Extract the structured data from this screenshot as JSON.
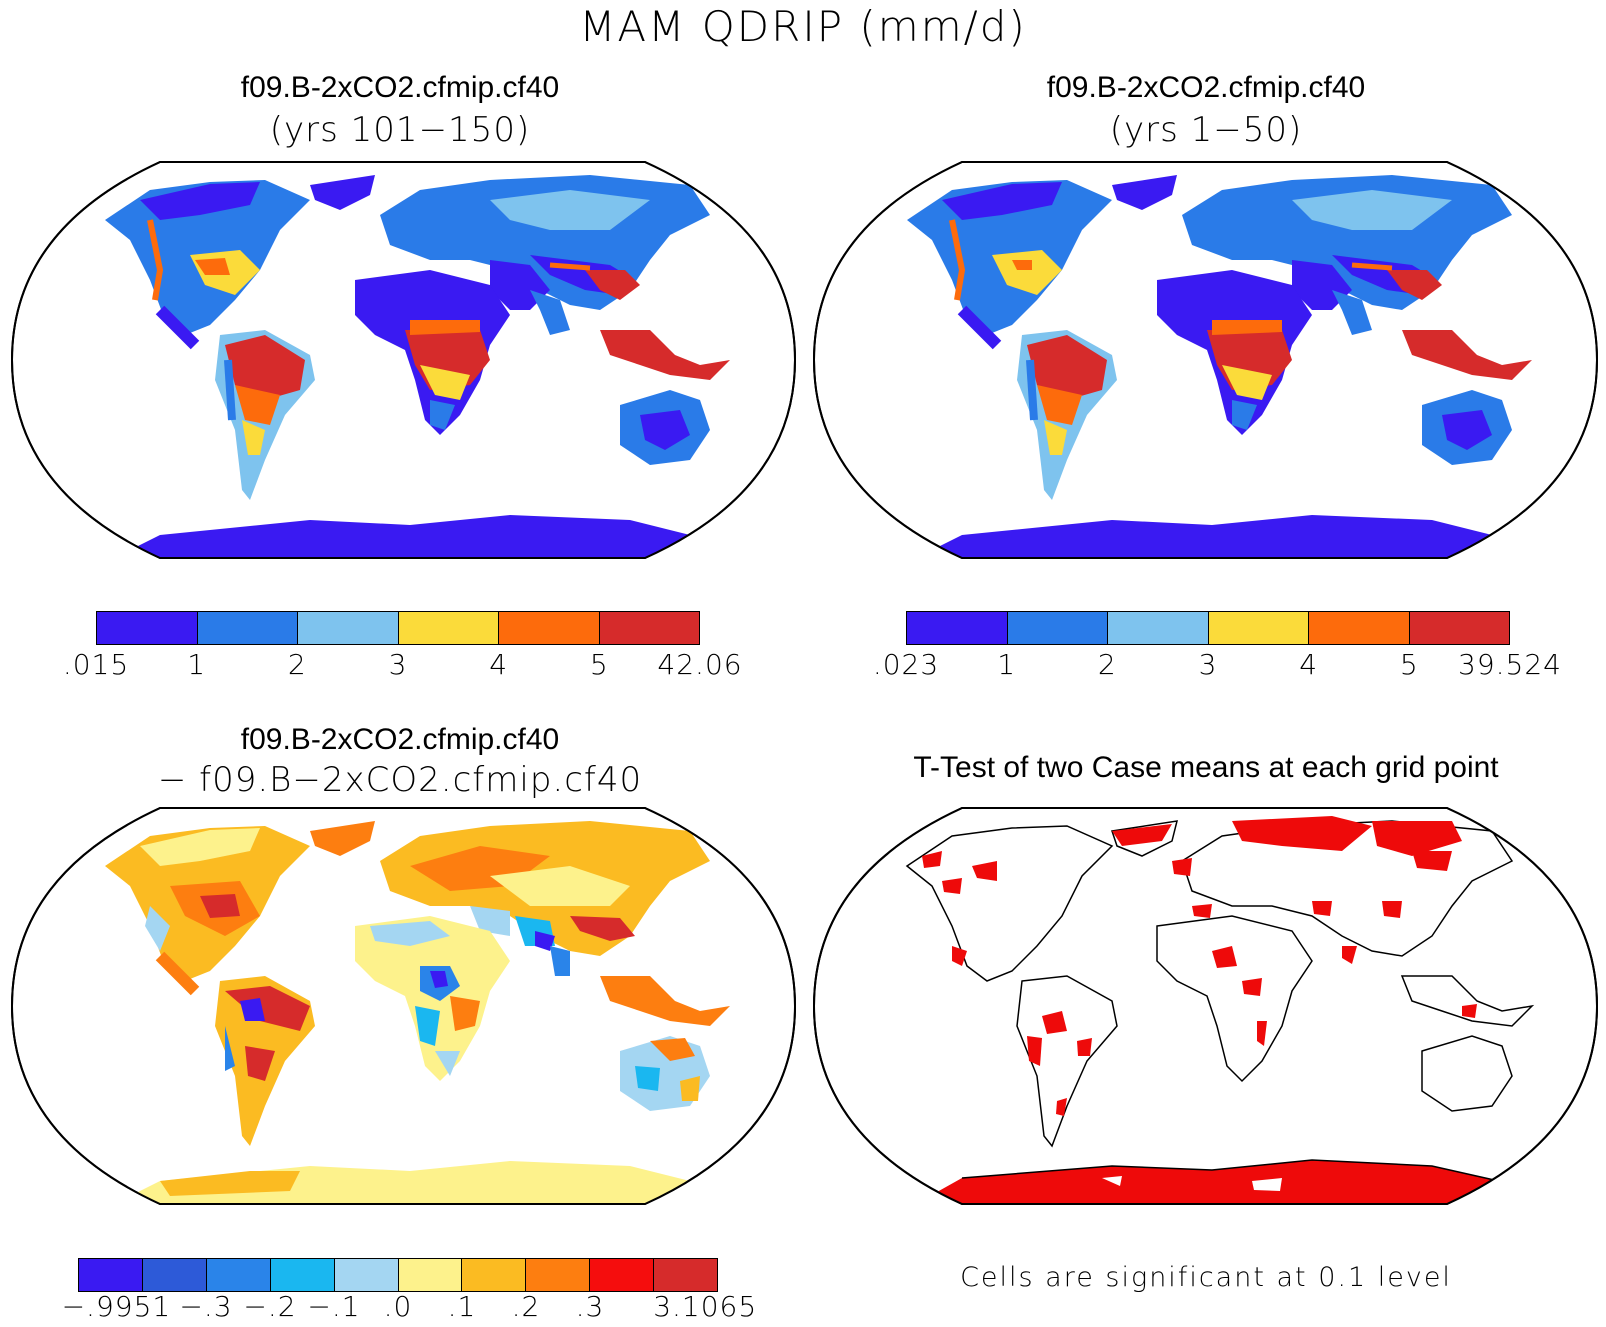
{
  "title": "MAM QDRIP (mm/d)",
  "panels": {
    "top_left": {
      "title": "f09.B-2xCO2.cfmip.cf40",
      "subtitle": "(yrs 101−150)",
      "colorbar_colors": [
        "#3a1af2",
        "#2a7be8",
        "#7ec3ee",
        "#fbdb3a",
        "#fd6b0c",
        "#d62b2b"
      ],
      "colorbar_labels": [
        ".015",
        "1",
        "2",
        "3",
        "4",
        "5",
        "42.06"
      ]
    },
    "top_right": {
      "title": "f09.B-2xCO2.cfmip.cf40",
      "subtitle": "(yrs 1−50)",
      "colorbar_colors": [
        "#3a1af2",
        "#2a7be8",
        "#7ec3ee",
        "#fbdb3a",
        "#fd6b0c",
        "#d62b2b"
      ],
      "colorbar_labels": [
        ".023",
        "1",
        "2",
        "3",
        "4",
        "5",
        "39.524"
      ]
    },
    "bottom_left": {
      "title": "f09.B-2xCO2.cfmip.cf40",
      "subtitle": "− f09.B−2xCO2.cfmip.cf40",
      "colorbar_colors": [
        "#3a1af2",
        "#2d5ad8",
        "#2a84e9",
        "#1ab7f0",
        "#a4d6f2",
        "#fdf28c",
        "#fbbb22",
        "#fd7e10",
        "#f50d0d",
        "#d62b2b"
      ],
      "colorbar_labels": [
        "−.9951",
        "−.3",
        "−.2",
        "−.1",
        ".0",
        ".1",
        ".2",
        ".3",
        "3.1065"
      ]
    },
    "bottom_right": {
      "title": "T-Test of two Case means at each grid point",
      "note": "Cells are significant at 0.1 level",
      "significant_color": "#ee0a0a"
    }
  }
}
